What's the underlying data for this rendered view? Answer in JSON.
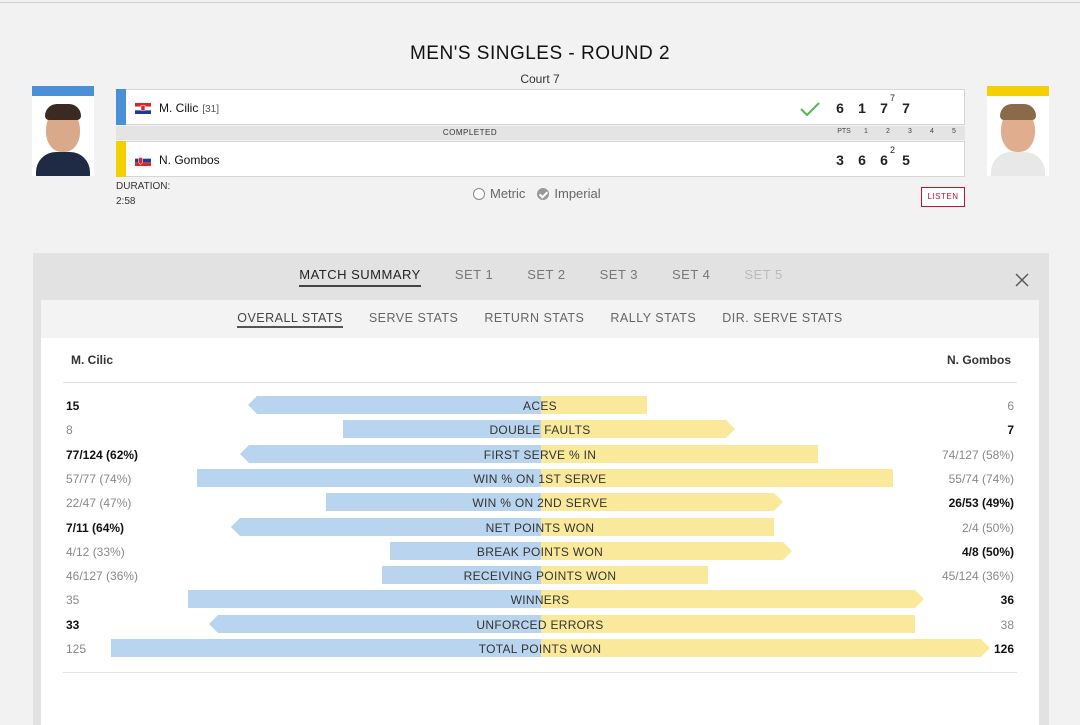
{
  "match": {
    "title": "MEN'S SINGLES - ROUND 2",
    "court": "Court 7",
    "status": "COMPLETED",
    "duration_label": "DURATION:",
    "duration": "2:58",
    "listen_label": "LISTEN",
    "column_headers": [
      "PTS",
      "1",
      "2",
      "3",
      "4",
      "5"
    ]
  },
  "units": {
    "metric": "Metric",
    "imperial": "Imperial",
    "selected": "Imperial"
  },
  "player1": {
    "name": "M. Cilic",
    "seed": "[31]",
    "country": "CRO",
    "color": "#4a90d9",
    "sets": [
      {
        "games": "6",
        "tiebreak": ""
      },
      {
        "games": "1",
        "tiebreak": ""
      },
      {
        "games": "7",
        "tiebreak": "7"
      },
      {
        "games": "7",
        "tiebreak": ""
      }
    ],
    "winner": true
  },
  "player2": {
    "name": "N. Gombos",
    "seed": "",
    "country": "SVK",
    "color": "#f5d000",
    "sets": [
      {
        "games": "3",
        "tiebreak": ""
      },
      {
        "games": "6",
        "tiebreak": ""
      },
      {
        "games": "6",
        "tiebreak": "2"
      },
      {
        "games": "5",
        "tiebreak": ""
      }
    ],
    "winner": false
  },
  "tabs": [
    "MATCH SUMMARY",
    "SET 1",
    "SET 2",
    "SET 3",
    "SET 4",
    "SET 5"
  ],
  "active_tab": "MATCH SUMMARY",
  "disabled_tabs": [
    "SET 5"
  ],
  "subtabs": [
    "OVERALL STATS",
    "SERVE STATS",
    "RETURN STATS",
    "RALLY STATS",
    "DIR. SERVE STATS"
  ],
  "active_subtab": "OVERALL STATS",
  "stats_header": {
    "left": "M. Cilic",
    "right": "N. Gombos"
  },
  "stats": [
    {
      "name": "ACES",
      "left": "15",
      "right": "6",
      "lbar": 0.66,
      "rbar": 0.24,
      "leader": "left"
    },
    {
      "name": "DOUBLE FAULTS",
      "left": "8",
      "right": "7",
      "lbar": 0.46,
      "rbar": 0.42,
      "leader": "right"
    },
    {
      "name": "FIRST SERVE % IN",
      "left": "77/124 (62%)",
      "right": "74/127 (58%)",
      "lbar": 0.68,
      "rbar": 0.63,
      "leader": "left"
    },
    {
      "name": "WIN % ON 1ST SERVE",
      "left": "57/77 (74%)",
      "right": "55/74 (74%)",
      "lbar": 0.8,
      "rbar": 0.8,
      "leader": "none"
    },
    {
      "name": "WIN % ON 2ND SERVE",
      "left": "22/47 (47%)",
      "right": "26/53 (49%)",
      "lbar": 0.5,
      "rbar": 0.53,
      "leader": "right"
    },
    {
      "name": "NET POINTS WON",
      "left": "7/11 (64%)",
      "right": "2/4 (50%)",
      "lbar": 0.7,
      "rbar": 0.53,
      "leader": "left"
    },
    {
      "name": "BREAK POINTS WON",
      "left": "4/12 (33%)",
      "right": "4/8 (50%)",
      "lbar": 0.35,
      "rbar": 0.55,
      "leader": "right"
    },
    {
      "name": "RECEIVING POINTS WON",
      "left": "46/127 (36%)",
      "right": "45/124 (36%)",
      "lbar": 0.37,
      "rbar": 0.38,
      "leader": "none"
    },
    {
      "name": "WINNERS",
      "left": "35",
      "right": "36",
      "lbar": 0.82,
      "rbar": 0.85,
      "leader": "right"
    },
    {
      "name": "UNFORCED ERRORS",
      "left": "33",
      "right": "38",
      "lbar": 0.75,
      "rbar": 0.85,
      "leader": "left"
    },
    {
      "name": "TOTAL POINTS WON",
      "left": "125",
      "right": "126",
      "lbar": 1.0,
      "rbar": 1.0,
      "leader": "right"
    }
  ]
}
